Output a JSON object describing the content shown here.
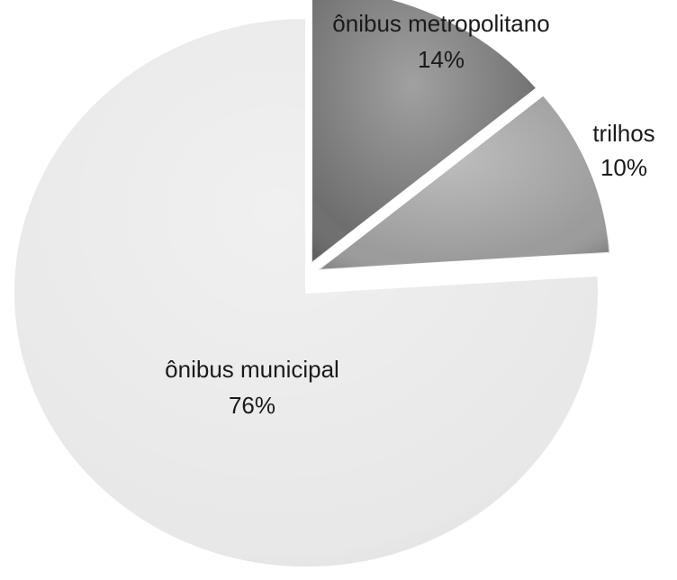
{
  "chart_data": {
    "type": "pie",
    "categories": [
      "ônibus metropolitano",
      "trilhos",
      "ônibus municipal"
    ],
    "values": [
      14,
      10,
      76
    ],
    "value_labels": [
      "14%",
      "10%",
      "76%"
    ],
    "colors": [
      "#6e6e6e",
      "#9b9b9b",
      "#e8e8e8"
    ]
  }
}
